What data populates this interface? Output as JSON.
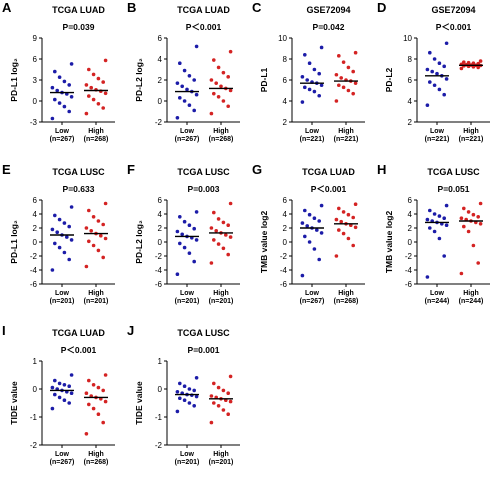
{
  "chart_data": [
    {
      "type": "strip",
      "label": "A",
      "title": "TCGA LUAD",
      "annotation": "P=0.039",
      "y_label": "PD-L1 log₂",
      "categories": [
        "Low",
        "High"
      ],
      "n_labels": [
        "(n=267)",
        "(n=268)"
      ],
      "ylim": [
        -3,
        9
      ],
      "yticks": [
        -3,
        0,
        3,
        6,
        9
      ],
      "series": [
        {
          "color": "#1c1ca8",
          "median": 1.2,
          "values": [
            -2.5,
            -1.5,
            -0.8,
            -0.3,
            0.2,
            0.6,
            1.0,
            1.2,
            1.5,
            1.9,
            2.3,
            2.8,
            3.4,
            4.2,
            5.3
          ]
        },
        {
          "color": "#d42323",
          "median": 1.5,
          "values": [
            -1.8,
            -1.0,
            -0.4,
            0.2,
            0.7,
            1.1,
            1.4,
            1.6,
            1.9,
            2.3,
            2.7,
            3.2,
            3.8,
            4.5,
            5.8
          ]
        }
      ]
    },
    {
      "type": "strip",
      "label": "B",
      "title": "TCGA LUAD",
      "annotation": "P＜0.001",
      "y_label": "PD-L2 log₂",
      "categories": [
        "Low",
        "High"
      ],
      "n_labels": [
        "(n=267)",
        "(n=268)"
      ],
      "ylim": [
        -2,
        6
      ],
      "yticks": [
        -2,
        0,
        2,
        4,
        6
      ],
      "series": [
        {
          "color": "#1c1ca8",
          "median": 0.9,
          "values": [
            -1.6,
            -0.9,
            -0.4,
            0.0,
            0.3,
            0.6,
            0.9,
            1.1,
            1.4,
            1.7,
            2.0,
            2.4,
            2.9,
            3.6,
            5.2
          ]
        },
        {
          "color": "#d42323",
          "median": 1.2,
          "values": [
            -1.2,
            -0.5,
            0,
            0.4,
            0.7,
            1.0,
            1.2,
            1.4,
            1.7,
            2.0,
            2.3,
            2.7,
            3.2,
            3.9,
            4.7
          ]
        }
      ]
    },
    {
      "type": "strip",
      "label": "C",
      "title": "GSE72094",
      "annotation": "P=0.042",
      "y_label": "PD-L1",
      "categories": [
        "Low",
        "High"
      ],
      "n_labels": [
        "(n=221)",
        "(n=221)"
      ],
      "ylim": [
        2,
        10
      ],
      "yticks": [
        2,
        4,
        6,
        8,
        10
      ],
      "series": [
        {
          "color": "#1c1ca8",
          "median": 5.7,
          "values": [
            3.9,
            4.5,
            4.9,
            5.1,
            5.3,
            5.5,
            5.7,
            5.8,
            6.0,
            6.3,
            6.6,
            7.0,
            7.6,
            8.4,
            9.1
          ]
        },
        {
          "color": "#d42323",
          "median": 5.9,
          "values": [
            4.0,
            4.7,
            5.0,
            5.3,
            5.5,
            5.7,
            5.9,
            6.0,
            6.2,
            6.5,
            6.8,
            7.2,
            7.7,
            8.3,
            8.6
          ]
        }
      ]
    },
    {
      "type": "strip",
      "label": "D",
      "title": "GSE72094",
      "annotation": "P＜0.001",
      "y_label": "PD-L2",
      "categories": [
        "Low",
        "High"
      ],
      "n_labels": [
        "(n=221)",
        "(n=221)"
      ],
      "ylim": [
        2,
        10
      ],
      "yticks": [
        2,
        4,
        6,
        8,
        10
      ],
      "series": [
        {
          "color": "#1c1ca8",
          "median": 6.4,
          "values": [
            3.6,
            4.6,
            5.1,
            5.5,
            5.8,
            6.1,
            6.4,
            6.6,
            6.8,
            7.0,
            7.3,
            7.6,
            8.0,
            8.6,
            9.5
          ]
        },
        {
          "color": "#d42323",
          "median": 7.4,
          "values": [
            7.1,
            7.2,
            7.25,
            7.3,
            7.35,
            7.38,
            7.4,
            7.42,
            7.45,
            7.5,
            7.55,
            7.6,
            7.65,
            7.7,
            7.8
          ]
        }
      ]
    },
    {
      "type": "strip",
      "label": "E",
      "title": "TCGA LUSC",
      "annotation": "P=0.633",
      "y_label": "PD-L1 log₂",
      "categories": [
        "Low",
        "High"
      ],
      "n_labels": [
        "(n=201)",
        "(n=201)"
      ],
      "ylim": [
        -6,
        6
      ],
      "yticks": [
        -6,
        -4,
        -2,
        0,
        2,
        4,
        6
      ],
      "series": [
        {
          "color": "#1c1ca8",
          "median": 1.0,
          "values": [
            -4.0,
            -2.5,
            -1.5,
            -0.8,
            -0.2,
            0.3,
            0.7,
            1.0,
            1.4,
            1.8,
            2.2,
            2.7,
            3.2,
            3.8,
            5.0
          ]
        },
        {
          "color": "#d42323",
          "median": 1.2,
          "values": [
            -3.5,
            -2.2,
            -1.2,
            -0.5,
            0.1,
            0.5,
            0.9,
            1.2,
            1.6,
            2.0,
            2.5,
            3.0,
            3.6,
            4.5,
            5.5
          ]
        }
      ]
    },
    {
      "type": "strip",
      "label": "F",
      "title": "TCGA LUSC",
      "annotation": "P=0.003",
      "y_label": "PD-L2 log₂",
      "categories": [
        "Low",
        "High"
      ],
      "n_labels": [
        "(n=201)",
        "(n=201)"
      ],
      "ylim": [
        -6,
        6
      ],
      "yticks": [
        -6,
        -4,
        -2,
        0,
        2,
        4,
        6
      ],
      "series": [
        {
          "color": "#1c1ca8",
          "median": 0.8,
          "values": [
            -4.6,
            -2.8,
            -1.6,
            -0.8,
            -0.2,
            0.3,
            0.6,
            0.8,
            1.1,
            1.5,
            1.9,
            2.4,
            2.9,
            3.6,
            4.3
          ]
        },
        {
          "color": "#d42323",
          "median": 1.3,
          "values": [
            -3.0,
            -1.8,
            -0.9,
            -0.3,
            0.3,
            0.7,
            1.0,
            1.3,
            1.6,
            2.0,
            2.4,
            2.8,
            3.3,
            4.2,
            5.5
          ]
        }
      ]
    },
    {
      "type": "strip",
      "label": "G",
      "title": "TCGA LUAD",
      "annotation": "P＜0.001",
      "y_label": "TMB value log2",
      "categories": [
        "Low",
        "High"
      ],
      "n_labels": [
        "(n=267)",
        "(n=268)"
      ],
      "ylim": [
        -6,
        6
      ],
      "yticks": [
        -6,
        -4,
        -2,
        0,
        2,
        4,
        6
      ],
      "series": [
        {
          "color": "#1c1ca8",
          "median": 2.0,
          "values": [
            -4.8,
            -2.5,
            -1.0,
            0,
            0.8,
            1.3,
            1.7,
            2.0,
            2.3,
            2.7,
            3.0,
            3.4,
            3.9,
            4.5,
            5.2
          ]
        },
        {
          "color": "#d42323",
          "median": 2.6,
          "values": [
            -2.0,
            -0.5,
            0.5,
            1.2,
            1.7,
            2.1,
            2.4,
            2.6,
            2.9,
            3.2,
            3.5,
            3.9,
            4.3,
            4.8,
            5.4
          ]
        }
      ]
    },
    {
      "type": "strip",
      "label": "H",
      "title": "TCGA LUSC",
      "annotation": "P=0.051",
      "y_label": "TMB value log2",
      "categories": [
        "Low",
        "High"
      ],
      "n_labels": [
        "(n=244)",
        "(n=244)"
      ],
      "ylim": [
        -6,
        6
      ],
      "yticks": [
        -6,
        -4,
        -2,
        0,
        2,
        4,
        6
      ],
      "series": [
        {
          "color": "#1c1ca8",
          "median": 2.8,
          "values": [
            -5.0,
            -2.0,
            0.5,
            1.5,
            2.0,
            2.4,
            2.6,
            2.8,
            3.0,
            3.2,
            3.4,
            3.7,
            4.0,
            4.5,
            5.2
          ]
        },
        {
          "color": "#d42323",
          "median": 3.0,
          "values": [
            -4.5,
            -3.0,
            -0.5,
            1.5,
            2.2,
            2.6,
            2.8,
            3.0,
            3.2,
            3.4,
            3.6,
            3.9,
            4.3,
            4.8,
            5.5
          ]
        }
      ]
    },
    {
      "type": "strip",
      "label": "I",
      "title": "TCGA LUAD",
      "annotation": "P＜0.001",
      "y_label": "TIDE value",
      "categories": [
        "Low",
        "High"
      ],
      "n_labels": [
        "(n=267)",
        "(n=268)"
      ],
      "ylim": [
        -2,
        1
      ],
      "yticks": [
        -2,
        -1,
        0,
        1
      ],
      "series": [
        {
          "color": "#1c1ca8",
          "median": -0.05,
          "values": [
            -0.7,
            -0.5,
            -0.4,
            -0.3,
            -0.2,
            -0.15,
            -0.1,
            -0.05,
            0,
            0.05,
            0.1,
            0.15,
            0.2,
            0.3,
            0.5
          ]
        },
        {
          "color": "#d42323",
          "median": -0.3,
          "values": [
            -1.6,
            -1.2,
            -0.9,
            -0.7,
            -0.55,
            -0.45,
            -0.35,
            -0.3,
            -0.25,
            -0.15,
            -0.05,
            0.05,
            0.15,
            0.3,
            0.5
          ]
        }
      ]
    },
    {
      "type": "strip",
      "label": "J",
      "title": "TCGA LUSC",
      "annotation": "P=0.001",
      "y_label": "TIDE value",
      "categories": [
        "Low",
        "High"
      ],
      "n_labels": [
        "(n=201)",
        "(n=201)"
      ],
      "ylim": [
        -2,
        1
      ],
      "yticks": [
        -2,
        -1,
        0,
        1
      ],
      "series": [
        {
          "color": "#1c1ca8",
          "median": -0.2,
          "values": [
            -0.8,
            -0.6,
            -0.5,
            -0.4,
            -0.33,
            -0.27,
            -0.22,
            -0.2,
            -0.15,
            -0.1,
            -0.05,
            0,
            0.1,
            0.2,
            0.4
          ]
        },
        {
          "color": "#d42323",
          "median": -0.35,
          "values": [
            -1.2,
            -0.9,
            -0.75,
            -0.6,
            -0.5,
            -0.45,
            -0.4,
            -0.35,
            -0.3,
            -0.25,
            -0.15,
            -0.05,
            0.05,
            0.2,
            0.45
          ]
        }
      ]
    }
  ]
}
